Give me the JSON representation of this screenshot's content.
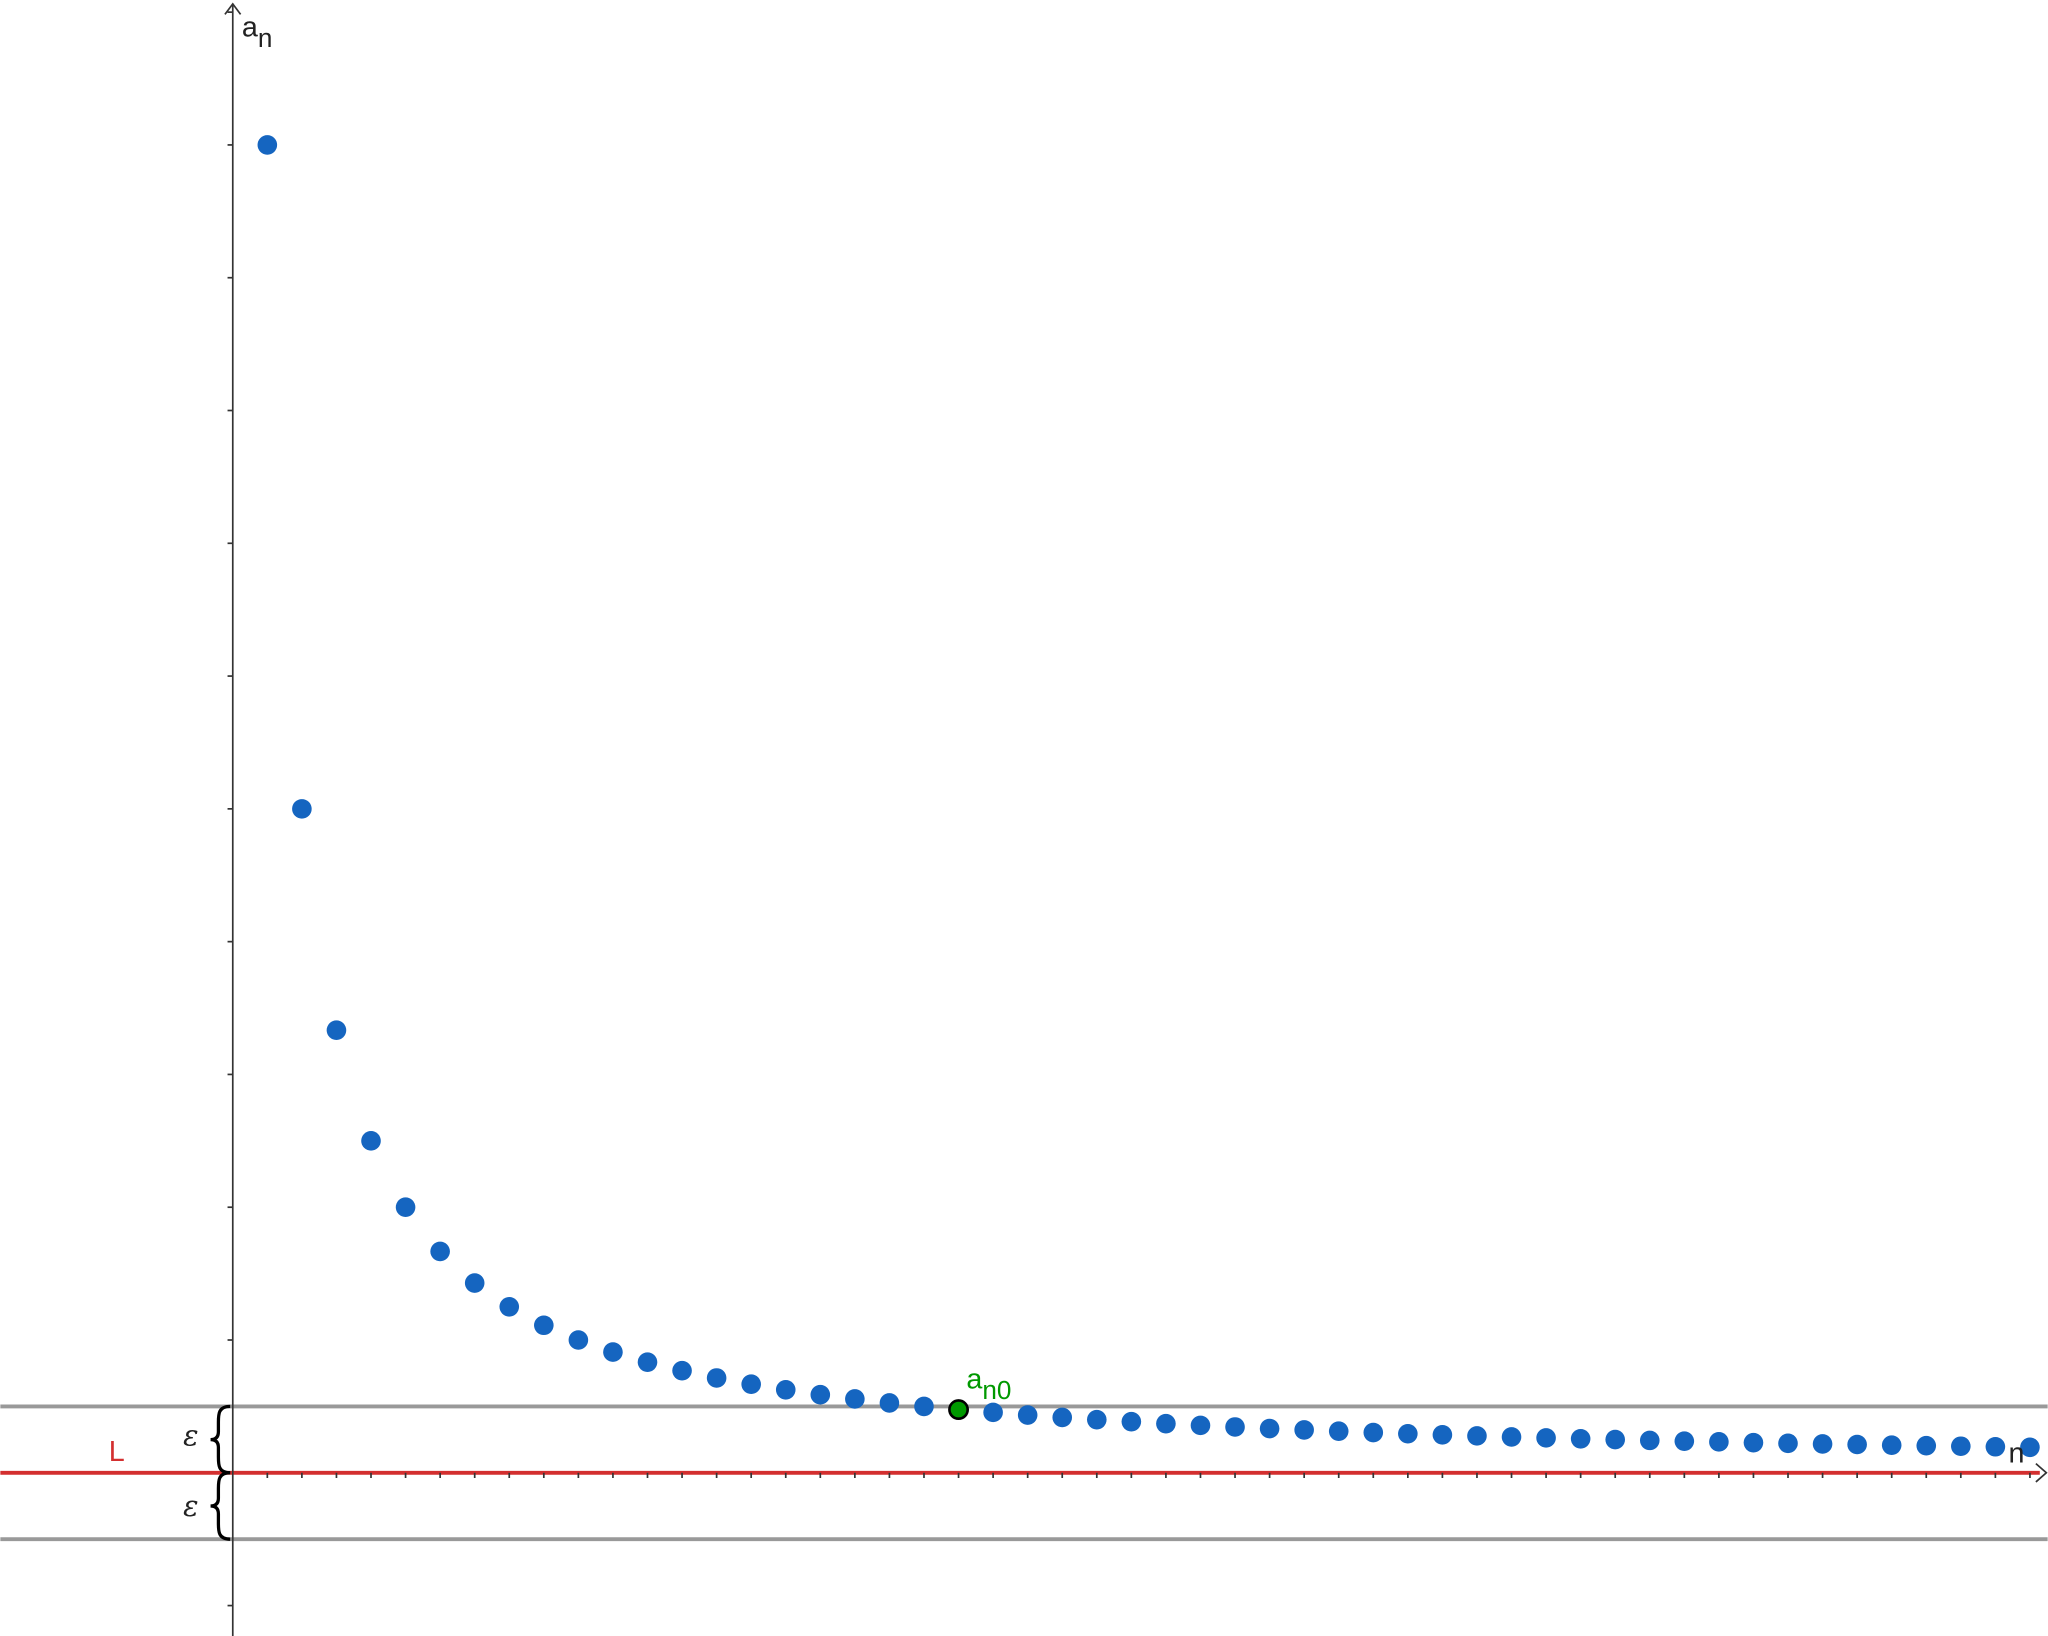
{
  "chart_data": {
    "type": "scatter",
    "title": "",
    "xlabel": "n",
    "ylabel": "a",
    "ylabel_sub": "n",
    "xlim": [
      0,
      52
    ],
    "ylim": [
      -1.2,
      11.1
    ],
    "grid": false,
    "x": [
      1,
      2,
      3,
      4,
      5,
      6,
      7,
      8,
      9,
      10,
      11,
      12,
      13,
      14,
      15,
      16,
      17,
      18,
      19,
      20,
      21,
      22,
      23,
      24,
      25,
      26,
      27,
      28,
      29,
      30,
      31,
      32,
      33,
      34,
      35,
      36,
      37,
      38,
      39,
      40,
      41,
      42,
      43,
      44,
      45,
      46,
      47,
      48,
      49,
      50,
      51,
      52
    ],
    "y": [
      10,
      5,
      3.333,
      2.5,
      2,
      1.667,
      1.429,
      1.25,
      1.111,
      1,
      0.909,
      0.833,
      0.769,
      0.714,
      0.667,
      0.625,
      0.588,
      0.556,
      0.526,
      0.5,
      0.476,
      0.455,
      0.435,
      0.417,
      0.4,
      0.385,
      0.37,
      0.357,
      0.345,
      0.333,
      0.323,
      0.313,
      0.303,
      0.294,
      0.286,
      0.278,
      0.27,
      0.263,
      0.256,
      0.25,
      0.244,
      0.238,
      0.233,
      0.227,
      0.222,
      0.217,
      0.213,
      0.208,
      0.204,
      0.2,
      0.196,
      0.192
    ],
    "limit": {
      "label": "L",
      "value": 0,
      "color": "#d32f2f"
    },
    "epsilon": {
      "label": "ε",
      "value": 0.5,
      "color": "#999999"
    },
    "highlight": {
      "index": 21,
      "label": "a",
      "label_sub": "n0",
      "color": "#009900"
    },
    "point_color": "#1565c0"
  }
}
